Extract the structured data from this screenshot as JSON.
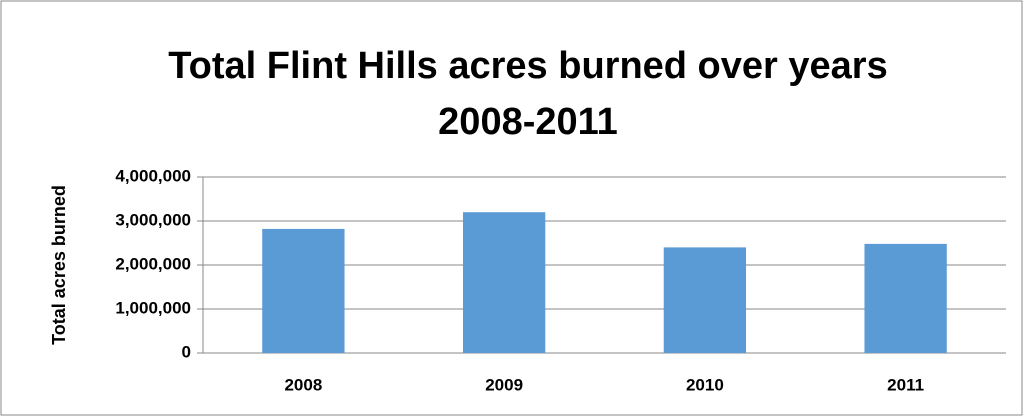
{
  "chart_data": {
    "type": "bar",
    "title": [
      "Total Flint Hills acres burned over years",
      "2008-2011"
    ],
    "y_label": "Total acres burned",
    "categories": [
      "2008",
      "2009",
      "2010",
      "2011"
    ],
    "values": [
      2820000,
      3200000,
      2400000,
      2480000
    ],
    "color": "#5b9bd5",
    "ylim": [
      0,
      4000000
    ],
    "yticks": [
      0,
      {
        "value": 1000000,
        "label": "1,000,000"
      },
      {
        "value": 2000000,
        "label": "2,000,000"
      },
      {
        "value": 3000000,
        "label": "3,000,000"
      },
      {
        "value": 4000000,
        "label": "4,000,000"
      }
    ],
    "grid": true
  }
}
